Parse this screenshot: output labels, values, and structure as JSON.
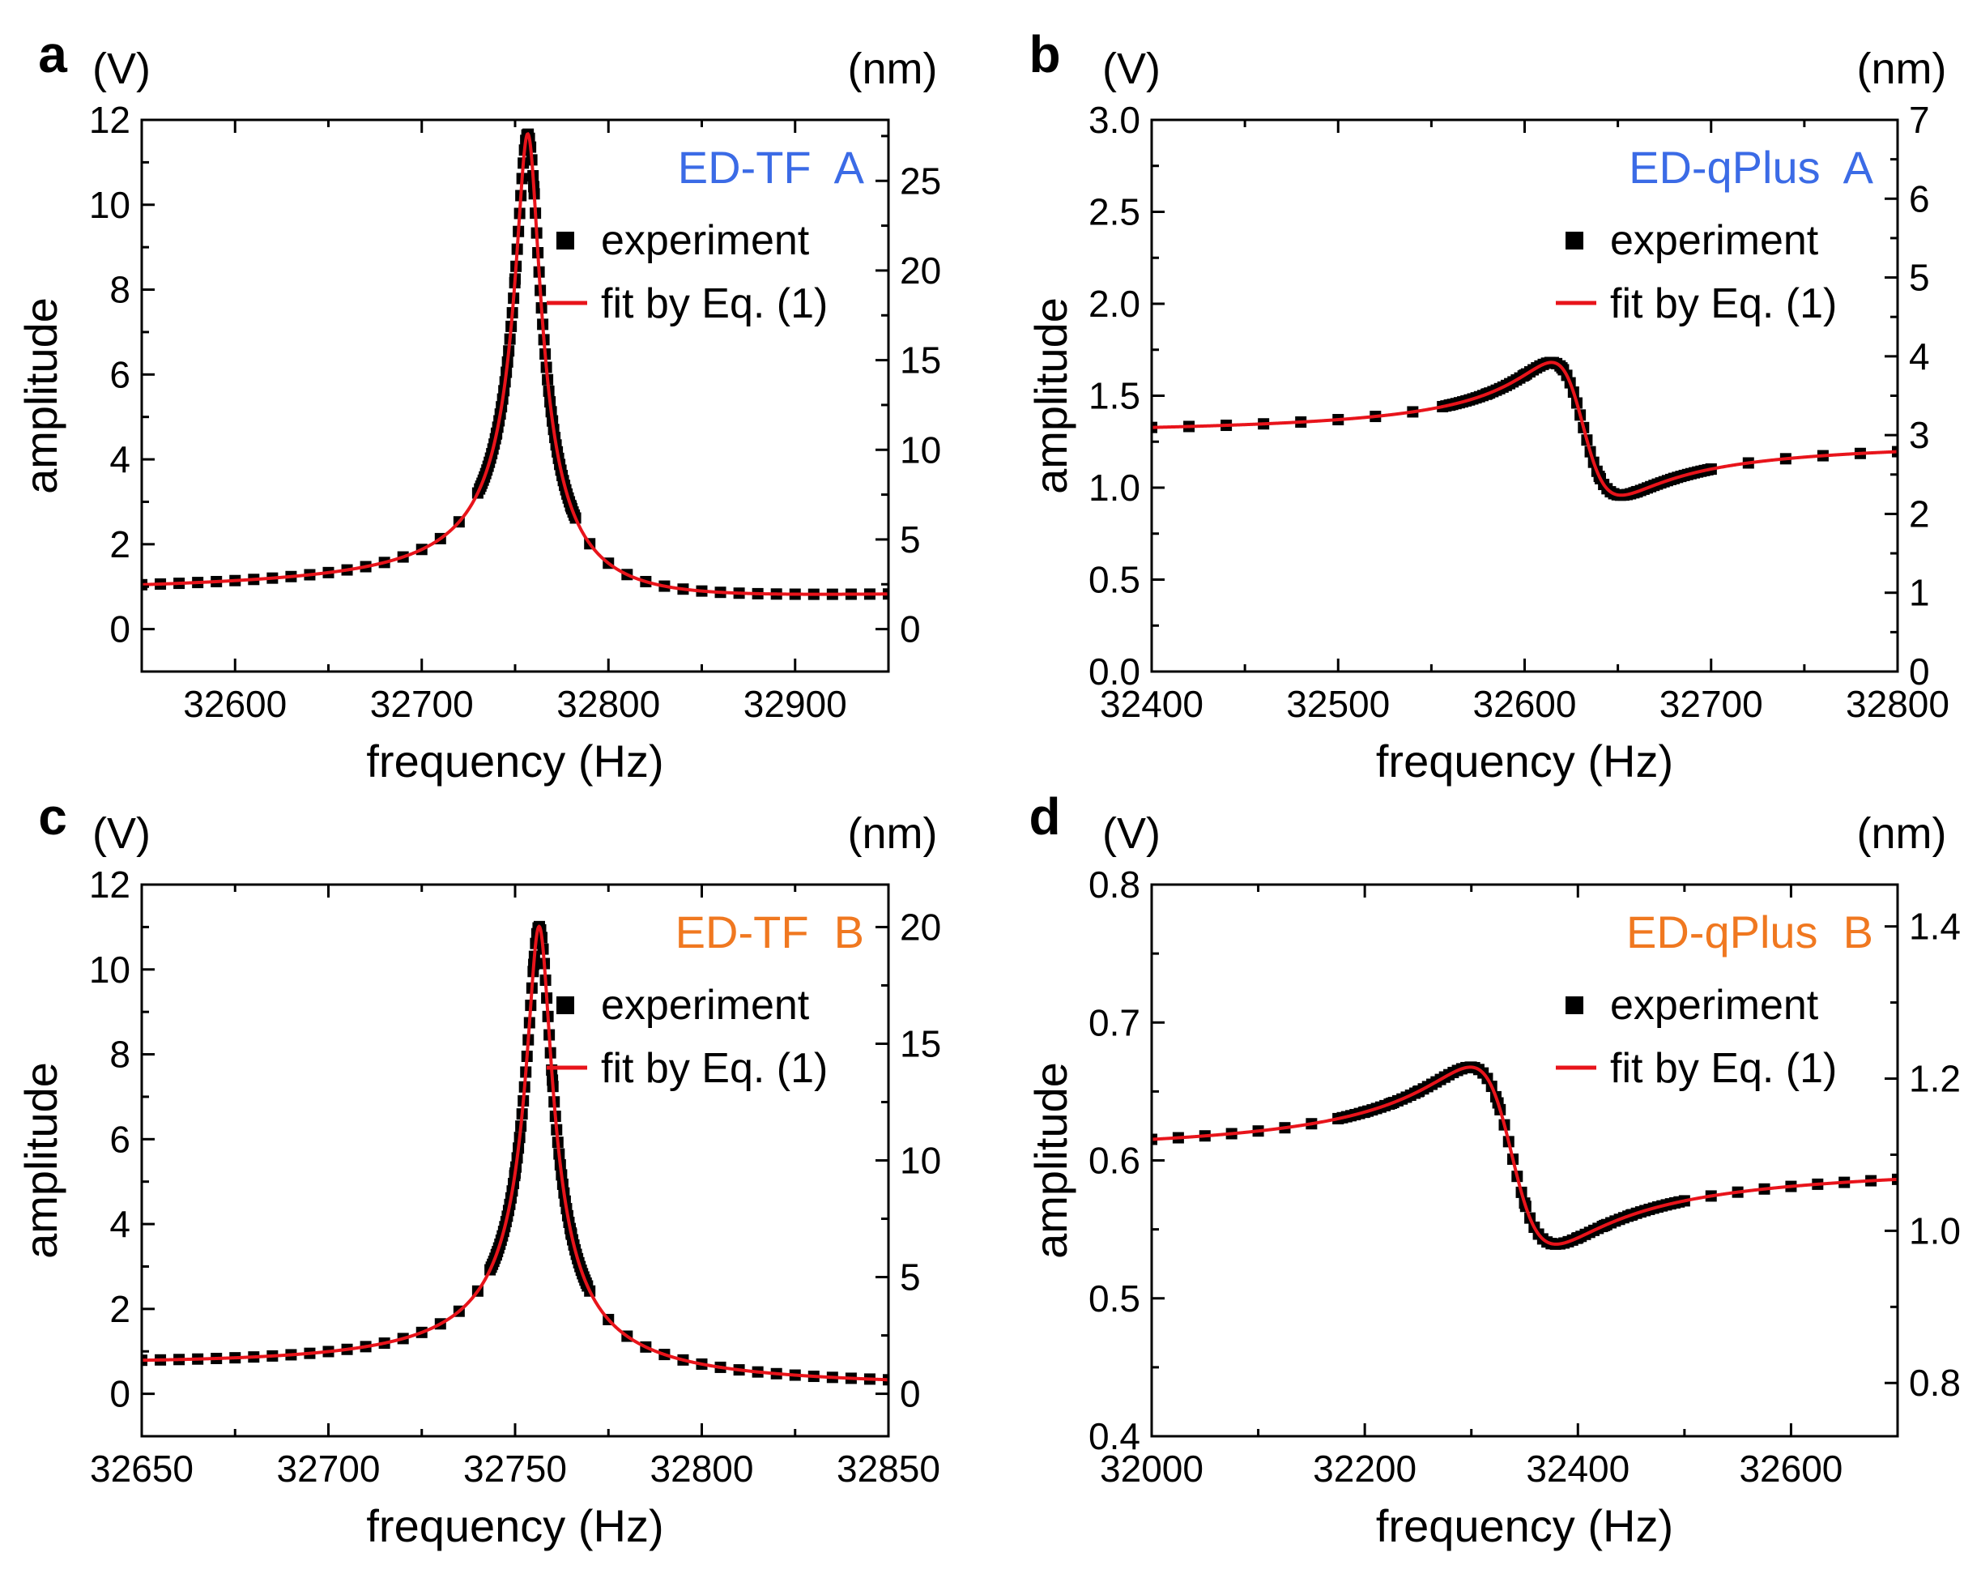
{
  "chart_data": [
    {
      "panel": "a",
      "type": "line",
      "tag": "ED-TF  A",
      "tag_color": "#3b6be6",
      "xlabel": "frequency (Hz)",
      "ylabel": "amplitude",
      "left_unit": "(V)",
      "right_unit": "(nm)",
      "xlim": [
        32550,
        32950
      ],
      "ylim": [
        -1.0,
        12.0
      ],
      "y2lim": [
        -2.367,
        28.4
      ],
      "xticks": [
        32600,
        32700,
        32800,
        32900
      ],
      "yticks": [
        0,
        2,
        4,
        6,
        8,
        10,
        12
      ],
      "y2ticks": [
        0,
        5,
        10,
        15,
        20,
        25
      ],
      "y_decimals": 0,
      "y2_decimals": 0,
      "legend": [
        "experiment",
        "fit by Eq. (1)"
      ],
      "model": {
        "f0": 32757,
        "gamma": 6.5,
        "A": 10.9,
        "b0": 0.87,
        "slope": 0.0003,
        "phi": 0.52,
        "s": 1.0
      },
      "experiment_step": 10
    },
    {
      "panel": "b",
      "type": "line",
      "tag": "ED-qPlus  A",
      "tag_color": "#3b6be6",
      "xlabel": "frequency (Hz)",
      "ylabel": "amplitude",
      "left_unit": "(V)",
      "right_unit": "(nm)",
      "xlim": [
        32400,
        32800
      ],
      "ylim": [
        0.0,
        3.0
      ],
      "y2lim": [
        0.0,
        7.0
      ],
      "xticks": [
        32400,
        32500,
        32600,
        32700,
        32800
      ],
      "yticks": [
        0.0,
        0.5,
        1.0,
        1.5,
        2.0,
        2.5,
        3.0
      ],
      "y2ticks": [
        0,
        1,
        2,
        3,
        4,
        5,
        6,
        7
      ],
      "y_decimals": 1,
      "y2_decimals": 0,
      "legend": [
        "experiment",
        "fit by Eq. (1)"
      ],
      "model": {
        "f0": 32628,
        "gamma": 18,
        "A": 0.72,
        "b0": 1.27,
        "slope": -0.0002,
        "phi": 1.57,
        "s": 1.0
      },
      "experiment_step": 20
    },
    {
      "panel": "c",
      "type": "line",
      "tag": "ED-TF  B",
      "tag_color": "#f07820",
      "xlabel": "frequency (Hz)",
      "ylabel": "amplitude",
      "left_unit": "(V)",
      "right_unit": "(nm)",
      "xlim": [
        32650,
        32850
      ],
      "ylim": [
        -1.0,
        12.0
      ],
      "y2lim": [
        -1.82,
        21.82
      ],
      "xticks": [
        32650,
        32700,
        32750,
        32800,
        32850
      ],
      "yticks": [
        0,
        2,
        4,
        6,
        8,
        10,
        12
      ],
      "y2ticks": [
        0,
        5,
        10,
        15,
        20
      ],
      "y_decimals": 0,
      "y2_decimals": 0,
      "legend": [
        "experiment",
        "fit by Eq. (1)"
      ],
      "model": {
        "f0": 32756.5,
        "gamma": 3.3,
        "A": 10.6,
        "b0": 0.47,
        "slope": -0.0013,
        "phi": 0.52,
        "s": 1.0
      },
      "experiment_step": 5
    },
    {
      "panel": "d",
      "type": "line",
      "tag": "ED-qPlus  B",
      "tag_color": "#f07820",
      "xlabel": "frequency (Hz)",
      "ylabel": "amplitude",
      "left_unit": "(V)",
      "right_unit": "(nm)",
      "xlim": [
        32000,
        32700
      ],
      "ylim": [
        0.4,
        0.8
      ],
      "y2lim": [
        0.73,
        1.455
      ],
      "xticks": [
        32000,
        32200,
        32400,
        32600
      ],
      "yticks": [
        0.4,
        0.5,
        0.6,
        0.7,
        0.8
      ],
      "y2ticks": [
        0.8,
        1.0,
        1.2,
        1.4
      ],
      "y_decimals": 1,
      "y2_decimals": 1,
      "legend": [
        "experiment",
        "fit by Eq. (1)"
      ],
      "model": {
        "f0": 32335,
        "gamma": 40,
        "A": 0.128,
        "b0": 0.6,
        "slope": -4e-05,
        "phi": 1.57,
        "s": 1.0
      },
      "experiment_step": 25
    }
  ]
}
